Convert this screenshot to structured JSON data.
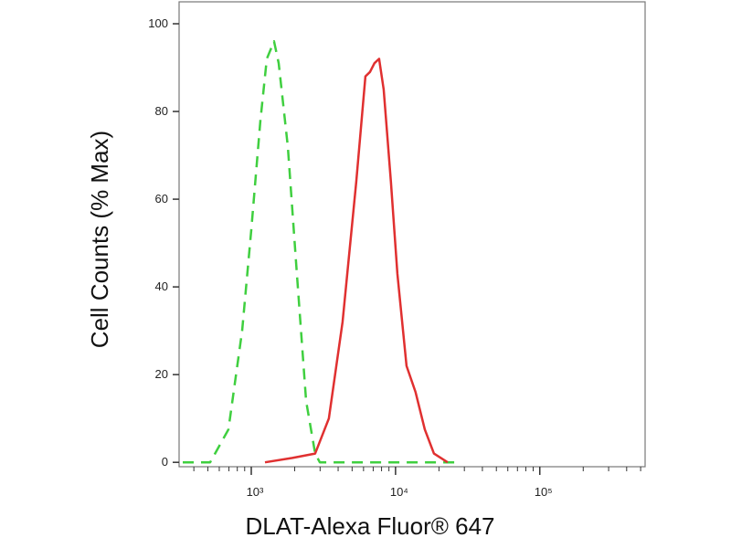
{
  "chart_data": {
    "type": "line",
    "xlabel": "DLAT-Alexa Fluor® 647",
    "ylabel": "Cell Counts (% Max)",
    "xscale": "log",
    "xlim": [
      316,
      537000
    ],
    "ylim": [
      -1,
      105
    ],
    "xticks": [
      {
        "value": 1000,
        "label": "10³"
      },
      {
        "value": 10000,
        "label": "10⁴"
      },
      {
        "value": 100000,
        "label": "10⁵"
      }
    ],
    "xminorticks": [
      400,
      500,
      600,
      700,
      800,
      900,
      2000,
      3000,
      4000,
      5000,
      6000,
      7000,
      8000,
      9000,
      20000,
      30000,
      40000,
      50000,
      60000,
      70000,
      80000,
      90000,
      200000,
      300000,
      400000,
      500000
    ],
    "yticks": [
      0,
      20,
      40,
      60,
      80,
      100
    ],
    "series": [
      {
        "color": "#3fcf3f",
        "style": "dashed",
        "x": [
          335,
          519,
          695,
          865,
          1000,
          1157,
          1281,
          1439,
          1549,
          1792,
          2072,
          2398,
          2774,
          2985,
          6180,
          26550
        ],
        "values": [
          0,
          0,
          7.5,
          30,
          53,
          78,
          92,
          96,
          91,
          72,
          43,
          14,
          2,
          0,
          0,
          0
        ]
      },
      {
        "color": "#e03030",
        "style": "solid",
        "x": [
          1245,
          1928,
          2774,
          3451,
          4295,
          5347,
          5746,
          6180,
          6650,
          7145,
          7690,
          8276,
          9290,
          10300,
          11910,
          13770,
          15950,
          18450,
          22960
        ],
        "values": [
          0,
          1,
          2,
          10,
          32,
          64,
          76,
          88,
          89,
          91,
          92,
          85,
          64,
          43,
          22,
          16,
          7.5,
          2,
          0
        ]
      }
    ]
  }
}
